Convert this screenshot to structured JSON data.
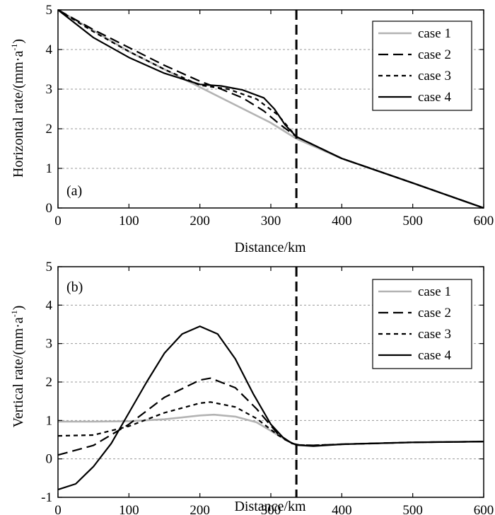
{
  "chart_data": [
    {
      "type": "line",
      "panel_label": "(a)",
      "xlabel": "Distance/km",
      "ylabel_main": "Horizontal rate/(mm·a",
      "ylabel_sup": "-1",
      "ylabel_close": ")",
      "xlim": [
        0,
        600
      ],
      "ylim": [
        0,
        5
      ],
      "xticks": [
        0,
        100,
        200,
        300,
        400,
        500,
        600
      ],
      "yticks": [
        0,
        1,
        2,
        3,
        4,
        5
      ],
      "grid": "horizontal dashed",
      "legend_position": "top-right",
      "vline_x": 336,
      "series": [
        {
          "name": "case 1",
          "color": "#b3b3b3",
          "dash": "solid",
          "x": [
            0,
            50,
            100,
            150,
            200,
            250,
            300,
            336,
            400,
            500,
            600
          ],
          "y": [
            5.0,
            4.48,
            3.95,
            3.5,
            3.05,
            2.6,
            2.15,
            1.75,
            1.25,
            0.63,
            0.0
          ]
        },
        {
          "name": "case 2",
          "color": "#000000",
          "dash": "long",
          "x": [
            0,
            50,
            100,
            150,
            200,
            230,
            260,
            290,
            310,
            336,
            400,
            500,
            600
          ],
          "y": [
            5.0,
            4.5,
            4.05,
            3.6,
            3.2,
            3.0,
            2.78,
            2.45,
            2.15,
            1.8,
            1.25,
            0.63,
            0.0
          ]
        },
        {
          "name": "case 3",
          "color": "#000000",
          "dash": "short",
          "x": [
            0,
            50,
            100,
            150,
            200,
            240,
            280,
            310,
            336,
            400,
            500,
            600
          ],
          "y": [
            5.0,
            4.45,
            3.95,
            3.5,
            3.1,
            3.0,
            2.75,
            2.35,
            1.8,
            1.25,
            0.63,
            0.0
          ]
        },
        {
          "name": "case 4",
          "color": "#000000",
          "dash": "solid",
          "x": [
            0,
            50,
            100,
            150,
            200,
            230,
            260,
            290,
            305,
            320,
            336,
            400,
            500,
            600
          ],
          "y": [
            5.0,
            4.3,
            3.8,
            3.4,
            3.12,
            3.08,
            2.98,
            2.78,
            2.5,
            2.1,
            1.8,
            1.25,
            0.63,
            0.0
          ]
        }
      ]
    },
    {
      "type": "line",
      "panel_label": "(b)",
      "xlabel": "Distance/km",
      "ylabel_main": "Vertical rate/(mm·a",
      "ylabel_sup": "-1",
      "ylabel_close": ")",
      "xlim": [
        0,
        600
      ],
      "ylim": [
        -1,
        5
      ],
      "xticks": [
        0,
        100,
        200,
        300,
        400,
        500,
        600
      ],
      "yticks": [
        -1,
        0,
        1,
        2,
        3,
        4,
        5
      ],
      "grid": "horizontal dashed",
      "legend_position": "top-right",
      "vline_x": 336,
      "series": [
        {
          "name": "case 1",
          "color": "#b3b3b3",
          "dash": "solid",
          "x": [
            0,
            50,
            100,
            150,
            200,
            220,
            250,
            280,
            310,
            330,
            340,
            360,
            400,
            500,
            600
          ],
          "y": [
            0.97,
            0.97,
            0.98,
            1.03,
            1.13,
            1.15,
            1.1,
            0.95,
            0.62,
            0.4,
            0.36,
            0.35,
            0.38,
            0.43,
            0.45
          ]
        },
        {
          "name": "case 2",
          "color": "#000000",
          "dash": "long",
          "x": [
            0,
            50,
            100,
            150,
            200,
            215,
            250,
            280,
            310,
            330,
            340,
            360,
            400,
            500,
            600
          ],
          "y": [
            0.1,
            0.35,
            0.9,
            1.6,
            2.05,
            2.1,
            1.85,
            1.3,
            0.65,
            0.4,
            0.36,
            0.35,
            0.38,
            0.43,
            0.45
          ]
        },
        {
          "name": "case 3",
          "color": "#000000",
          "dash": "short",
          "x": [
            0,
            50,
            100,
            150,
            200,
            215,
            250,
            280,
            310,
            330,
            340,
            360,
            400,
            500,
            600
          ],
          "y": [
            0.6,
            0.62,
            0.85,
            1.2,
            1.45,
            1.48,
            1.35,
            1.05,
            0.62,
            0.4,
            0.36,
            0.35,
            0.38,
            0.43,
            0.45
          ]
        },
        {
          "name": "case 4",
          "color": "#000000",
          "dash": "solid",
          "x": [
            0,
            25,
            50,
            75,
            100,
            125,
            150,
            175,
            200,
            225,
            250,
            275,
            300,
            320,
            336,
            360,
            400,
            500,
            600
          ],
          "y": [
            -0.8,
            -0.65,
            -0.2,
            0.4,
            1.2,
            2.0,
            2.75,
            3.25,
            3.45,
            3.25,
            2.6,
            1.7,
            0.9,
            0.5,
            0.36,
            0.33,
            0.38,
            0.43,
            0.45
          ]
        }
      ]
    }
  ]
}
